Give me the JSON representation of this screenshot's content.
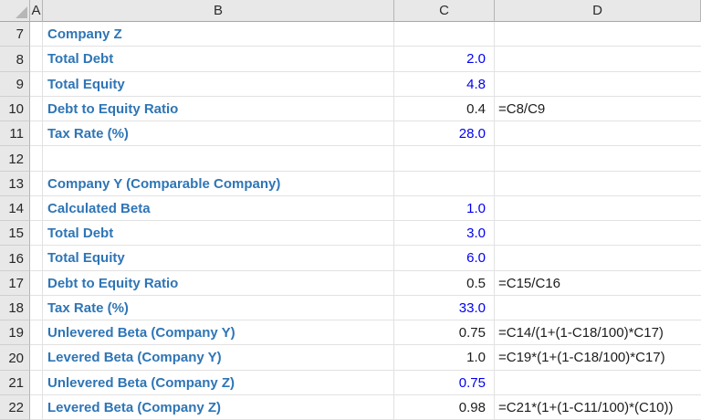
{
  "app": {
    "type": "spreadsheet",
    "select_all_icon": "select-all-triangle"
  },
  "colors": {
    "label_blue": "#2E75B6",
    "input_blue": "#0000F0",
    "result_text": "#1C1C1C",
    "header_bg": "#E8E8E8",
    "gridline": "#E2E2E2"
  },
  "columns": {
    "a": "A",
    "b": "B",
    "c": "C",
    "d": "D"
  },
  "rows": [
    {
      "num": "7",
      "b": "Company Z",
      "c": "",
      "c_style": "",
      "d": ""
    },
    {
      "num": "8",
      "b": "Total Debt",
      "c": "2.0",
      "c_style": "input",
      "d": ""
    },
    {
      "num": "9",
      "b": "Total Equity",
      "c": "4.8",
      "c_style": "input",
      "d": ""
    },
    {
      "num": "10",
      "b": "Debt to Equity Ratio",
      "c": "0.4",
      "c_style": "result",
      "d": "=C8/C9"
    },
    {
      "num": "11",
      "b": "Tax Rate (%)",
      "c": "28.0",
      "c_style": "input",
      "d": ""
    },
    {
      "num": "12",
      "b": "",
      "c": "",
      "c_style": "",
      "d": ""
    },
    {
      "num": "13",
      "b": "Company Y (Comparable Company)",
      "c": "",
      "c_style": "",
      "d": ""
    },
    {
      "num": "14",
      "b": "Calculated Beta",
      "c": "1.0",
      "c_style": "input",
      "d": ""
    },
    {
      "num": "15",
      "b": "Total Debt",
      "c": "3.0",
      "c_style": "input",
      "d": ""
    },
    {
      "num": "16",
      "b": "Total Equity",
      "c": "6.0",
      "c_style": "input",
      "d": ""
    },
    {
      "num": "17",
      "b": "Debt to Equity Ratio",
      "c": "0.5",
      "c_style": "result",
      "d": "=C15/C16"
    },
    {
      "num": "18",
      "b": "Tax Rate (%)",
      "c": "33.0",
      "c_style": "input",
      "d": ""
    },
    {
      "num": "19",
      "b": "Unlevered Beta (Company Y)",
      "c": "0.75",
      "c_style": "result",
      "d": "=C14/(1+(1-C18/100)*C17)"
    },
    {
      "num": "20",
      "b": "Levered Beta (Company Y)",
      "c": "1.0",
      "c_style": "result",
      "d": "=C19*(1+(1-C18/100)*C17)"
    },
    {
      "num": "21",
      "b": "Unlevered Beta (Company Z)",
      "c": "0.75",
      "c_style": "input",
      "d": ""
    },
    {
      "num": "22",
      "b": "Levered Beta (Company Z)",
      "c": "0.98",
      "c_style": "result",
      "d": "=C21*(1+(1-C11/100)*(C10))"
    }
  ]
}
